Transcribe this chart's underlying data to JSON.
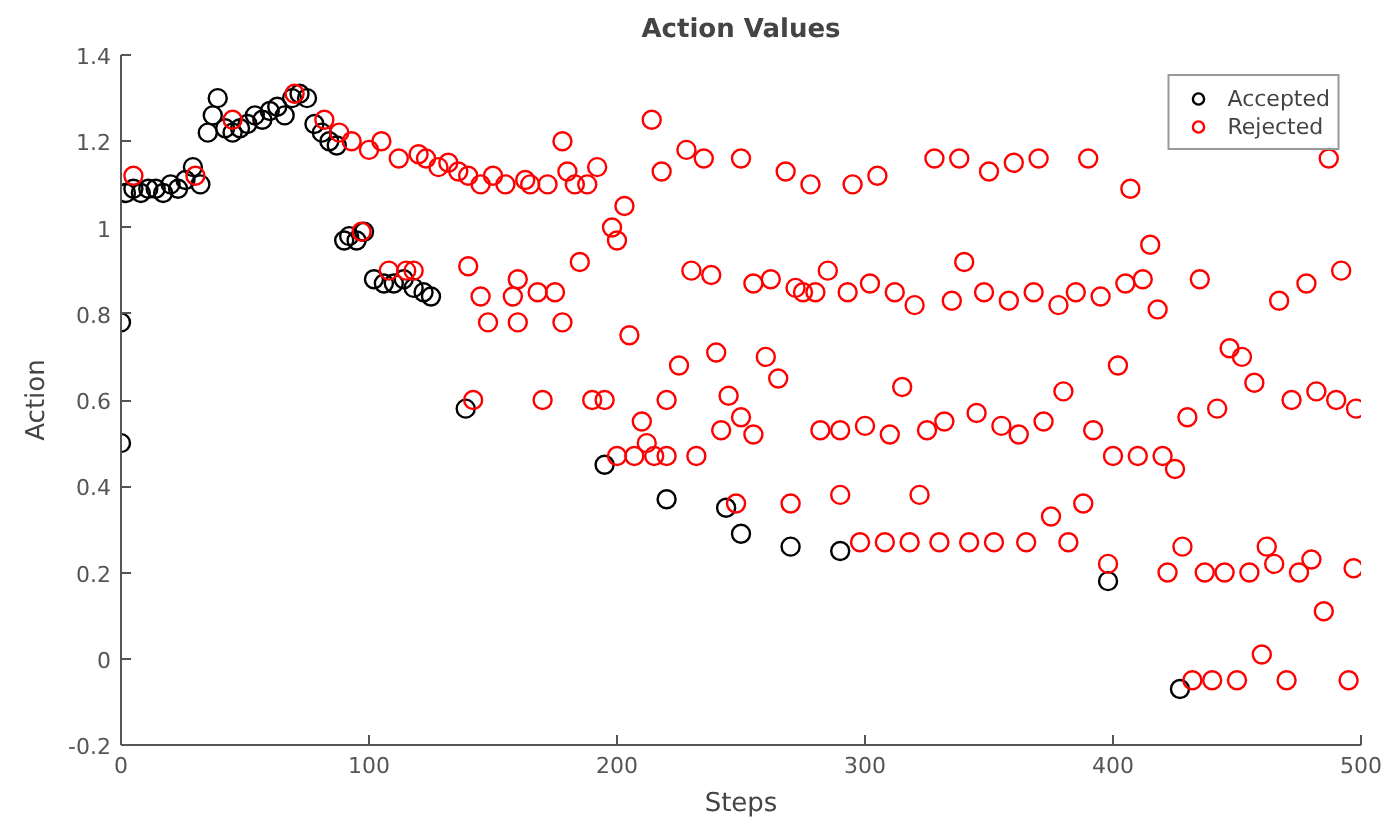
{
  "chart_data": {
    "type": "scatter",
    "title": "Action Values",
    "xlabel": "Steps",
    "ylabel": "Action",
    "xlim": [
      0,
      500
    ],
    "xticks": [
      0,
      100,
      200,
      300,
      400,
      500
    ],
    "ylim": [
      -0.2,
      1.4
    ],
    "yticks": [
      -0.2,
      0,
      0.2,
      0.4,
      0.6,
      0.8,
      1,
      1.2,
      1.4
    ],
    "marker": "circle",
    "legend": "top right",
    "grid": false,
    "series": [
      {
        "name": "Accepted",
        "color": "#000000",
        "x": [
          0,
          0,
          2,
          5,
          8,
          11,
          14,
          17,
          20,
          23,
          26,
          29,
          32,
          35,
          37,
          39,
          42,
          45,
          48,
          51,
          54,
          57,
          60,
          63,
          66,
          69,
          72,
          75,
          78,
          81,
          84,
          87,
          90,
          92,
          95,
          98,
          102,
          106,
          110,
          114,
          118,
          122,
          125,
          139,
          195,
          220,
          244,
          250,
          270,
          290,
          398,
          427
        ],
        "values": [
          0.78,
          0.5,
          1.08,
          1.09,
          1.08,
          1.09,
          1.09,
          1.08,
          1.1,
          1.09,
          1.11,
          1.14,
          1.1,
          1.22,
          1.26,
          1.3,
          1.23,
          1.22,
          1.23,
          1.24,
          1.26,
          1.25,
          1.27,
          1.28,
          1.26,
          1.3,
          1.31,
          1.3,
          1.24,
          1.22,
          1.2,
          1.19,
          0.97,
          0.98,
          0.97,
          0.99,
          0.88,
          0.87,
          0.87,
          0.88,
          0.86,
          0.85,
          0.84,
          0.58,
          0.45,
          0.37,
          0.35,
          0.29,
          0.26,
          0.25,
          0.18,
          -0.07
        ]
      },
      {
        "name": "Rejected",
        "color": "#ff0000",
        "x": [
          5,
          30,
          45,
          70,
          82,
          88,
          93,
          97,
          100,
          105,
          108,
          112,
          115,
          118,
          120,
          123,
          128,
          132,
          136,
          140,
          140,
          142,
          145,
          145,
          148,
          150,
          155,
          158,
          160,
          160,
          163,
          165,
          168,
          170,
          172,
          175,
          178,
          178,
          180,
          183,
          185,
          188,
          190,
          192,
          195,
          198,
          200,
          200,
          203,
          205,
          207,
          210,
          212,
          214,
          215,
          218,
          220,
          220,
          225,
          228,
          230,
          232,
          235,
          238,
          240,
          242,
          245,
          248,
          250,
          250,
          255,
          255,
          260,
          262,
          265,
          268,
          270,
          272,
          275,
          278,
          280,
          282,
          285,
          290,
          290,
          293,
          295,
          298,
          300,
          302,
          305,
          308,
          310,
          312,
          315,
          318,
          320,
          322,
          325,
          328,
          330,
          332,
          335,
          338,
          340,
          342,
          345,
          348,
          350,
          352,
          355,
          358,
          360,
          362,
          365,
          368,
          370,
          372,
          375,
          378,
          380,
          382,
          385,
          388,
          390,
          392,
          395,
          398,
          400,
          402,
          405,
          407,
          410,
          412,
          415,
          418,
          420,
          422,
          425,
          428,
          430,
          432,
          435,
          437,
          440,
          442,
          445,
          447,
          450,
          452,
          455,
          457,
          460,
          462,
          465,
          467,
          470,
          472,
          475,
          478,
          480,
          482,
          485,
          487,
          490,
          492,
          495,
          497,
          498
        ],
        "values": [
          1.12,
          1.12,
          1.25,
          1.31,
          1.25,
          1.22,
          1.2,
          0.99,
          1.18,
          1.2,
          0.9,
          1.16,
          0.9,
          0.9,
          1.17,
          1.16,
          1.14,
          1.15,
          1.13,
          1.12,
          0.91,
          0.6,
          1.1,
          0.84,
          0.78,
          1.12,
          1.1,
          0.84,
          0.88,
          0.78,
          1.11,
          1.1,
          0.85,
          0.6,
          1.1,
          0.85,
          1.2,
          0.78,
          1.13,
          1.1,
          0.92,
          1.1,
          0.6,
          1.14,
          0.6,
          1.0,
          0.47,
          0.97,
          1.05,
          0.75,
          0.47,
          0.55,
          0.5,
          1.25,
          0.47,
          1.13,
          0.47,
          0.6,
          0.68,
          1.18,
          0.9,
          0.47,
          1.16,
          0.89,
          0.71,
          0.53,
          0.61,
          0.36,
          0.56,
          1.16,
          0.87,
          0.52,
          0.7,
          0.88,
          0.65,
          1.13,
          0.36,
          0.86,
          0.85,
          1.1,
          0.85,
          0.53,
          0.9,
          0.53,
          0.38,
          0.85,
          1.1,
          0.27,
          0.54,
          0.87,
          1.12,
          0.27,
          0.52,
          0.85,
          0.63,
          0.27,
          0.82,
          0.38,
          0.53,
          1.16,
          0.27,
          0.55,
          0.83,
          1.16,
          0.92,
          0.27,
          0.57,
          0.85,
          1.13,
          0.27,
          0.54,
          0.83,
          1.15,
          0.52,
          0.27,
          0.85,
          1.16,
          0.55,
          0.33,
          0.82,
          0.62,
          0.27,
          0.85,
          0.36,
          1.16,
          0.53,
          0.84,
          0.22,
          0.47,
          0.68,
          0.87,
          1.09,
          0.47,
          0.88,
          0.96,
          0.81,
          0.47,
          0.2,
          0.44,
          0.26,
          0.56,
          -0.05,
          0.88,
          0.2,
          -0.05,
          0.58,
          0.2,
          0.72,
          -0.05,
          0.7,
          0.2,
          0.64,
          0.01,
          0.26,
          0.22,
          0.83,
          -0.05,
          0.6,
          0.2,
          0.87,
          0.23,
          0.62,
          0.11,
          1.16,
          0.6,
          0.9,
          -0.05,
          0.21,
          0.58
        ]
      }
    ]
  }
}
